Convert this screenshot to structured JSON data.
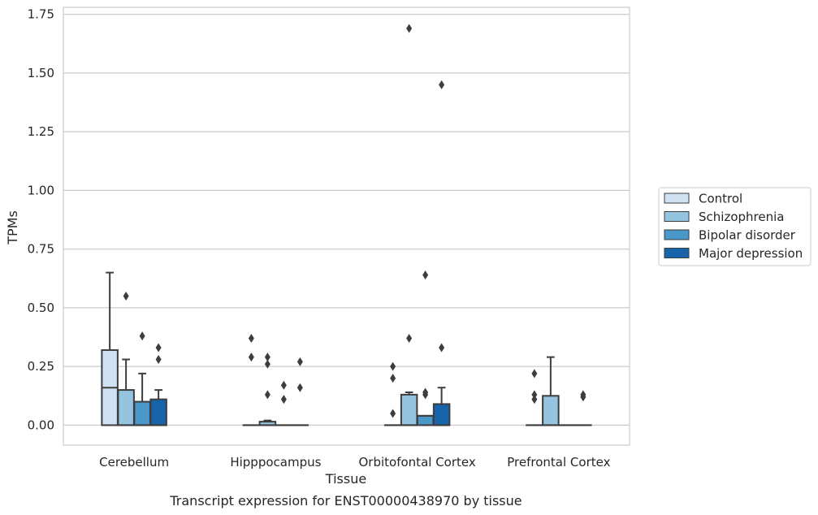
{
  "chart_data": {
    "type": "box",
    "title": "",
    "caption": "Transcript expression for ENST00000438970 by tissue",
    "xlabel": "Tissue",
    "ylabel": "TPMs",
    "ylim": [
      -0.085,
      1.78
    ],
    "yticks": [
      0.0,
      0.25,
      0.5,
      0.75,
      1.0,
      1.25,
      1.5,
      1.75
    ],
    "ytick_labels": [
      "0.00",
      "0.25",
      "0.50",
      "0.75",
      "1.00",
      "1.25",
      "1.50",
      "1.75"
    ],
    "grid": "horizontal",
    "legend_position": "right",
    "categories": [
      "Cerebellum",
      "Hipppocampus",
      "Orbitofontal Cortex",
      "Prefrontal Cortex"
    ],
    "series": [
      {
        "name": "Control",
        "color": "#d0e1f2",
        "boxes": [
          {
            "whislo": 0.0,
            "q1": 0.0,
            "med": 0.16,
            "q3": 0.32,
            "whishi": 0.65,
            "fliers": []
          },
          {
            "whislo": 0.0,
            "q1": 0.0,
            "med": 0.0,
            "q3": 0.0,
            "whishi": 0.0,
            "fliers": [
              0.37,
              0.29
            ]
          },
          {
            "whislo": 0.0,
            "q1": 0.0,
            "med": 0.0,
            "q3": 0.0,
            "whishi": 0.0,
            "fliers": [
              0.25,
              0.2,
              0.05
            ]
          },
          {
            "whislo": 0.0,
            "q1": 0.0,
            "med": 0.0,
            "q3": 0.0,
            "whishi": 0.0,
            "fliers": [
              0.22,
              0.13,
              0.11
            ]
          }
        ]
      },
      {
        "name": "Schizophrenia",
        "color": "#94c4df",
        "boxes": [
          {
            "whislo": 0.0,
            "q1": 0.0,
            "med": 0.0,
            "q3": 0.15,
            "whishi": 0.28,
            "fliers": [
              0.55
            ]
          },
          {
            "whislo": 0.0,
            "q1": 0.0,
            "med": 0.0,
            "q3": 0.015,
            "whishi": 0.02,
            "fliers": [
              0.29,
              0.26,
              0.13
            ]
          },
          {
            "whislo": 0.0,
            "q1": 0.0,
            "med": 0.0,
            "q3": 0.13,
            "whishi": 0.14,
            "fliers": [
              1.69,
              0.37
            ]
          },
          {
            "whislo": 0.0,
            "q1": 0.0,
            "med": 0.0,
            "q3": 0.125,
            "whishi": 0.29,
            "fliers": []
          }
        ]
      },
      {
        "name": "Bipolar disorder",
        "color": "#4a98c9",
        "boxes": [
          {
            "whislo": 0.0,
            "q1": 0.0,
            "med": 0.0,
            "q3": 0.1,
            "whishi": 0.22,
            "fliers": [
              0.38
            ]
          },
          {
            "whislo": 0.0,
            "q1": 0.0,
            "med": 0.0,
            "q3": 0.0,
            "whishi": 0.0,
            "fliers": [
              0.17,
              0.11
            ]
          },
          {
            "whislo": 0.0,
            "q1": 0.0,
            "med": 0.04,
            "q3": 0.04,
            "whishi": 0.04,
            "fliers": [
              0.64,
              0.14,
              0.13
            ]
          },
          {
            "whislo": 0.0,
            "q1": 0.0,
            "med": 0.0,
            "q3": 0.0,
            "whishi": 0.0,
            "fliers": []
          }
        ]
      },
      {
        "name": "Major depression",
        "color": "#1764ab",
        "boxes": [
          {
            "whislo": 0.0,
            "q1": 0.0,
            "med": 0.0,
            "q3": 0.11,
            "whishi": 0.15,
            "fliers": [
              0.33,
              0.28
            ]
          },
          {
            "whislo": 0.0,
            "q1": 0.0,
            "med": 0.0,
            "q3": 0.0,
            "whishi": 0.0,
            "fliers": [
              0.27,
              0.16
            ]
          },
          {
            "whislo": 0.0,
            "q1": 0.0,
            "med": 0.0,
            "q3": 0.09,
            "whishi": 0.16,
            "fliers": [
              1.45,
              0.33
            ]
          },
          {
            "whislo": 0.0,
            "q1": 0.0,
            "med": 0.0,
            "q3": 0.0,
            "whishi": 0.0,
            "fliers": [
              0.13,
              0.12
            ]
          }
        ]
      }
    ]
  }
}
